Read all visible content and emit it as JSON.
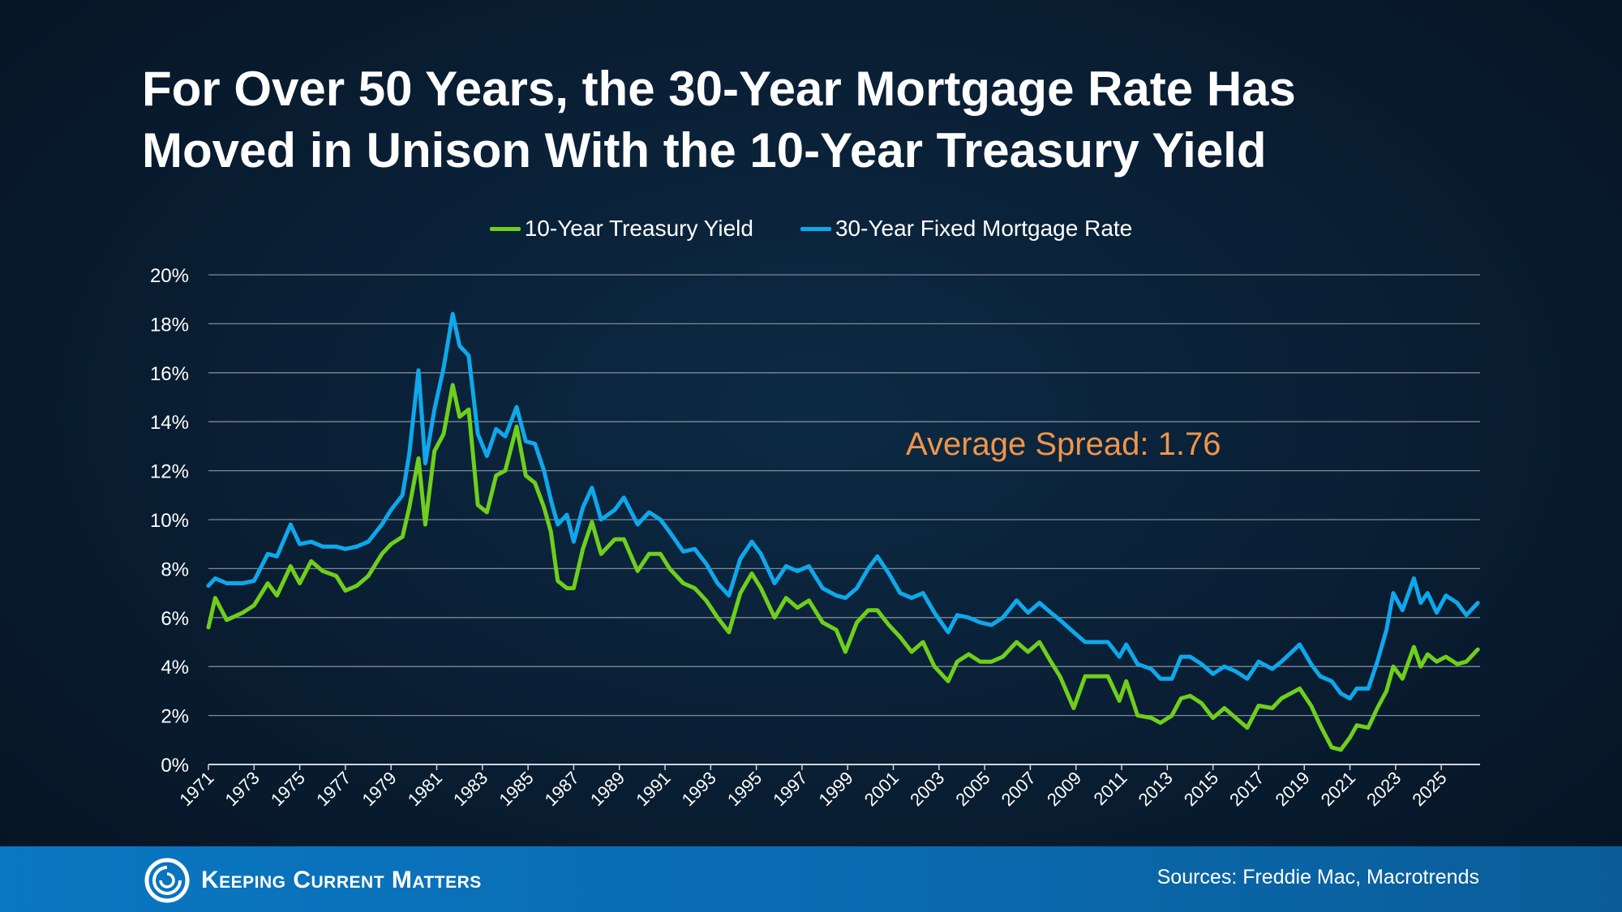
{
  "title": {
    "line1": "For Over 50 Years, the 30-Year Mortgage Rate Has",
    "line2": "Moved in Unison With the 10-Year Treasury Yield"
  },
  "annotation": "Average Spread: 1.76",
  "footer": {
    "logo_text": "Keeping Current Matters",
    "sources": "Sources: Freddie Mac, Macrotrends"
  },
  "colors": {
    "treasury": "#6fcf1c",
    "mortgage": "#0ea8ec",
    "annotation": "#f0954a",
    "footer": "#0a6ab0"
  },
  "chart_data": {
    "type": "line",
    "legend_position": "top-center",
    "grid": true,
    "ylim": [
      0,
      20
    ],
    "xlim": [
      1971,
      2026.7
    ],
    "y_ticks": [
      0,
      2,
      4,
      6,
      8,
      10,
      12,
      14,
      16,
      18,
      20
    ],
    "y_tick_labels": [
      "0%",
      "2%",
      "4%",
      "6%",
      "8%",
      "10%",
      "12%",
      "14%",
      "16%",
      "18%",
      "20%"
    ],
    "x_ticks": [
      1971,
      1973,
      1975,
      1977,
      1979,
      1981,
      1983,
      1985,
      1987,
      1989,
      1991,
      1993,
      1995,
      1997,
      1999,
      2001,
      2003,
      2005,
      2007,
      2009,
      2011,
      2013,
      2015,
      2017,
      2019,
      2021,
      2023,
      2025
    ],
    "series": [
      {
        "name": "10-Year Treasury Yield",
        "color": "#6fcf1c",
        "points": [
          [
            1971.0,
            5.6
          ],
          [
            1971.3,
            6.8
          ],
          [
            1971.8,
            5.9
          ],
          [
            1972.5,
            6.2
          ],
          [
            1973.0,
            6.5
          ],
          [
            1973.6,
            7.4
          ],
          [
            1974.0,
            6.9
          ],
          [
            1974.6,
            8.1
          ],
          [
            1975.0,
            7.4
          ],
          [
            1975.5,
            8.3
          ],
          [
            1976.0,
            7.9
          ],
          [
            1976.6,
            7.7
          ],
          [
            1977.0,
            7.1
          ],
          [
            1977.5,
            7.3
          ],
          [
            1978.0,
            7.7
          ],
          [
            1978.6,
            8.6
          ],
          [
            1979.0,
            9.0
          ],
          [
            1979.5,
            9.3
          ],
          [
            1979.8,
            10.5
          ],
          [
            1980.2,
            12.5
          ],
          [
            1980.5,
            9.8
          ],
          [
            1980.9,
            12.8
          ],
          [
            1981.3,
            13.5
          ],
          [
            1981.7,
            15.5
          ],
          [
            1982.0,
            14.2
          ],
          [
            1982.4,
            14.5
          ],
          [
            1982.8,
            10.6
          ],
          [
            1983.2,
            10.3
          ],
          [
            1983.6,
            11.8
          ],
          [
            1984.0,
            12.0
          ],
          [
            1984.5,
            13.8
          ],
          [
            1984.9,
            11.8
          ],
          [
            1985.3,
            11.5
          ],
          [
            1985.7,
            10.5
          ],
          [
            1986.0,
            9.5
          ],
          [
            1986.3,
            7.5
          ],
          [
            1986.7,
            7.2
          ],
          [
            1987.0,
            7.2
          ],
          [
            1987.4,
            8.8
          ],
          [
            1987.8,
            9.9
          ],
          [
            1988.2,
            8.6
          ],
          [
            1988.8,
            9.2
          ],
          [
            1989.2,
            9.2
          ],
          [
            1989.8,
            7.9
          ],
          [
            1990.3,
            8.6
          ],
          [
            1990.8,
            8.6
          ],
          [
            1991.2,
            8.0
          ],
          [
            1991.8,
            7.4
          ],
          [
            1992.3,
            7.2
          ],
          [
            1992.8,
            6.7
          ],
          [
            1993.3,
            6.0
          ],
          [
            1993.8,
            5.4
          ],
          [
            1994.3,
            7.0
          ],
          [
            1994.8,
            7.8
          ],
          [
            1995.2,
            7.2
          ],
          [
            1995.8,
            6.0
          ],
          [
            1996.3,
            6.8
          ],
          [
            1996.8,
            6.4
          ],
          [
            1997.3,
            6.7
          ],
          [
            1997.9,
            5.8
          ],
          [
            1998.5,
            5.5
          ],
          [
            1998.9,
            4.6
          ],
          [
            1999.4,
            5.8
          ],
          [
            1999.9,
            6.3
          ],
          [
            2000.3,
            6.3
          ],
          [
            2000.8,
            5.7
          ],
          [
            2001.3,
            5.2
          ],
          [
            2001.8,
            4.6
          ],
          [
            2002.3,
            5.0
          ],
          [
            2002.8,
            4.0
          ],
          [
            2003.4,
            3.4
          ],
          [
            2003.8,
            4.2
          ],
          [
            2004.3,
            4.5
          ],
          [
            2004.8,
            4.2
          ],
          [
            2005.3,
            4.2
          ],
          [
            2005.8,
            4.4
          ],
          [
            2006.4,
            5.0
          ],
          [
            2006.9,
            4.6
          ],
          [
            2007.4,
            5.0
          ],
          [
            2007.9,
            4.2
          ],
          [
            2008.3,
            3.6
          ],
          [
            2008.9,
            2.3
          ],
          [
            2009.4,
            3.6
          ],
          [
            2009.9,
            3.6
          ],
          [
            2010.4,
            3.6
          ],
          [
            2010.9,
            2.6
          ],
          [
            2011.2,
            3.4
          ],
          [
            2011.7,
            2.0
          ],
          [
            2012.3,
            1.9
          ],
          [
            2012.7,
            1.7
          ],
          [
            2013.2,
            2.0
          ],
          [
            2013.6,
            2.7
          ],
          [
            2014.0,
            2.8
          ],
          [
            2014.5,
            2.5
          ],
          [
            2015.0,
            1.9
          ],
          [
            2015.5,
            2.3
          ],
          [
            2016.0,
            1.9
          ],
          [
            2016.5,
            1.5
          ],
          [
            2017.0,
            2.4
          ],
          [
            2017.6,
            2.3
          ],
          [
            2018.0,
            2.7
          ],
          [
            2018.8,
            3.1
          ],
          [
            2019.3,
            2.4
          ],
          [
            2019.7,
            1.6
          ],
          [
            2020.2,
            0.7
          ],
          [
            2020.6,
            0.6
          ],
          [
            2021.0,
            1.1
          ],
          [
            2021.3,
            1.6
          ],
          [
            2021.8,
            1.5
          ],
          [
            2022.2,
            2.3
          ],
          [
            2022.6,
            3.0
          ],
          [
            2022.9,
            4.0
          ],
          [
            2023.3,
            3.5
          ],
          [
            2023.8,
            4.8
          ],
          [
            2024.1,
            4.0
          ],
          [
            2024.4,
            4.5
          ],
          [
            2024.8,
            4.2
          ],
          [
            2025.2,
            4.4
          ],
          [
            2025.7,
            4.1
          ],
          [
            2026.1,
            4.2
          ],
          [
            2026.6,
            4.7
          ]
        ]
      },
      {
        "name": "30-Year Fixed Mortgage Rate",
        "color": "#0ea8ec",
        "points": [
          [
            1971.0,
            7.3
          ],
          [
            1971.3,
            7.6
          ],
          [
            1971.8,
            7.4
          ],
          [
            1972.5,
            7.4
          ],
          [
            1973.0,
            7.5
          ],
          [
            1973.6,
            8.6
          ],
          [
            1974.0,
            8.5
          ],
          [
            1974.6,
            9.8
          ],
          [
            1975.0,
            9.0
          ],
          [
            1975.5,
            9.1
          ],
          [
            1976.0,
            8.9
          ],
          [
            1976.6,
            8.9
          ],
          [
            1977.0,
            8.8
          ],
          [
            1977.5,
            8.9
          ],
          [
            1978.0,
            9.1
          ],
          [
            1978.6,
            9.8
          ],
          [
            1979.0,
            10.4
          ],
          [
            1979.5,
            11.0
          ],
          [
            1979.8,
            12.7
          ],
          [
            1980.2,
            16.1
          ],
          [
            1980.5,
            12.3
          ],
          [
            1980.9,
            14.5
          ],
          [
            1981.3,
            16.2
          ],
          [
            1981.7,
            18.4
          ],
          [
            1982.0,
            17.1
          ],
          [
            1982.4,
            16.7
          ],
          [
            1982.8,
            13.5
          ],
          [
            1983.2,
            12.6
          ],
          [
            1983.6,
            13.7
          ],
          [
            1984.0,
            13.4
          ],
          [
            1984.5,
            14.6
          ],
          [
            1984.9,
            13.2
          ],
          [
            1985.3,
            13.1
          ],
          [
            1985.7,
            12.0
          ],
          [
            1986.0,
            10.8
          ],
          [
            1986.3,
            9.8
          ],
          [
            1986.7,
            10.2
          ],
          [
            1987.0,
            9.1
          ],
          [
            1987.4,
            10.5
          ],
          [
            1987.8,
            11.3
          ],
          [
            1988.2,
            10.0
          ],
          [
            1988.8,
            10.4
          ],
          [
            1989.2,
            10.9
          ],
          [
            1989.8,
            9.8
          ],
          [
            1990.3,
            10.3
          ],
          [
            1990.8,
            10.0
          ],
          [
            1991.2,
            9.5
          ],
          [
            1991.8,
            8.7
          ],
          [
            1992.3,
            8.8
          ],
          [
            1992.8,
            8.2
          ],
          [
            1993.3,
            7.4
          ],
          [
            1993.8,
            6.9
          ],
          [
            1994.3,
            8.4
          ],
          [
            1994.8,
            9.1
          ],
          [
            1995.2,
            8.6
          ],
          [
            1995.8,
            7.4
          ],
          [
            1996.3,
            8.1
          ],
          [
            1996.8,
            7.9
          ],
          [
            1997.3,
            8.1
          ],
          [
            1997.9,
            7.2
          ],
          [
            1998.5,
            6.9
          ],
          [
            1998.9,
            6.8
          ],
          [
            1999.4,
            7.2
          ],
          [
            1999.9,
            8.0
          ],
          [
            2000.3,
            8.5
          ],
          [
            2000.8,
            7.8
          ],
          [
            2001.3,
            7.0
          ],
          [
            2001.8,
            6.8
          ],
          [
            2002.3,
            7.0
          ],
          [
            2002.8,
            6.2
          ],
          [
            2003.4,
            5.4
          ],
          [
            2003.8,
            6.1
          ],
          [
            2004.3,
            6.0
          ],
          [
            2004.8,
            5.8
          ],
          [
            2005.3,
            5.7
          ],
          [
            2005.8,
            6.0
          ],
          [
            2006.4,
            6.7
          ],
          [
            2006.9,
            6.2
          ],
          [
            2007.4,
            6.6
          ],
          [
            2007.9,
            6.2
          ],
          [
            2008.3,
            5.9
          ],
          [
            2008.9,
            5.4
          ],
          [
            2009.4,
            5.0
          ],
          [
            2009.9,
            5.0
          ],
          [
            2010.4,
            5.0
          ],
          [
            2010.9,
            4.4
          ],
          [
            2011.2,
            4.9
          ],
          [
            2011.7,
            4.1
          ],
          [
            2012.3,
            3.9
          ],
          [
            2012.7,
            3.5
          ],
          [
            2013.2,
            3.5
          ],
          [
            2013.6,
            4.4
          ],
          [
            2014.0,
            4.4
          ],
          [
            2014.5,
            4.1
          ],
          [
            2015.0,
            3.7
          ],
          [
            2015.5,
            4.0
          ],
          [
            2016.0,
            3.8
          ],
          [
            2016.5,
            3.5
          ],
          [
            2017.0,
            4.2
          ],
          [
            2017.6,
            3.9
          ],
          [
            2018.0,
            4.2
          ],
          [
            2018.8,
            4.9
          ],
          [
            2019.3,
            4.1
          ],
          [
            2019.7,
            3.6
          ],
          [
            2020.2,
            3.4
          ],
          [
            2020.6,
            2.9
          ],
          [
            2021.0,
            2.7
          ],
          [
            2021.3,
            3.1
          ],
          [
            2021.8,
            3.1
          ],
          [
            2022.2,
            4.2
          ],
          [
            2022.6,
            5.5
          ],
          [
            2022.9,
            7.0
          ],
          [
            2023.3,
            6.3
          ],
          [
            2023.8,
            7.6
          ],
          [
            2024.1,
            6.6
          ],
          [
            2024.4,
            7.0
          ],
          [
            2024.8,
            6.2
          ],
          [
            2025.2,
            6.9
          ],
          [
            2025.7,
            6.6
          ],
          [
            2026.1,
            6.1
          ],
          [
            2026.6,
            6.6
          ]
        ]
      }
    ]
  }
}
